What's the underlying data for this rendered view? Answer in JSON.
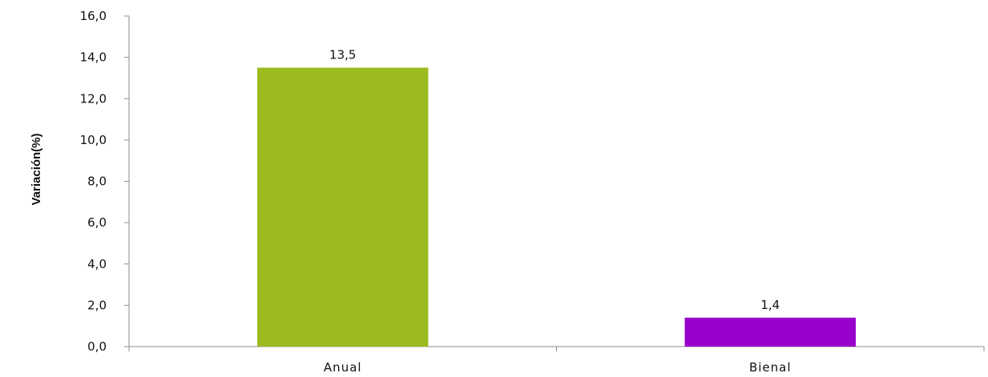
{
  "chart_data": {
    "type": "bar",
    "categories": [
      "Anual",
      "Bienal"
    ],
    "values": [
      13.5,
      1.4
    ],
    "value_labels": [
      "13,5",
      "1,4"
    ],
    "colors": [
      "#9bbb1f",
      "#9900cc"
    ],
    "title": "",
    "xlabel": "",
    "ylabel": "Variación(%)",
    "ylim": [
      0,
      16
    ],
    "yticks": [
      0,
      2,
      4,
      6,
      8,
      10,
      12,
      14,
      16
    ],
    "ytick_labels": [
      "0,0",
      "2,0",
      "4,0",
      "6,0",
      "8,0",
      "10,0",
      "12,0",
      "14,0",
      "16,0"
    ],
    "grid": false,
    "legend": "none"
  }
}
